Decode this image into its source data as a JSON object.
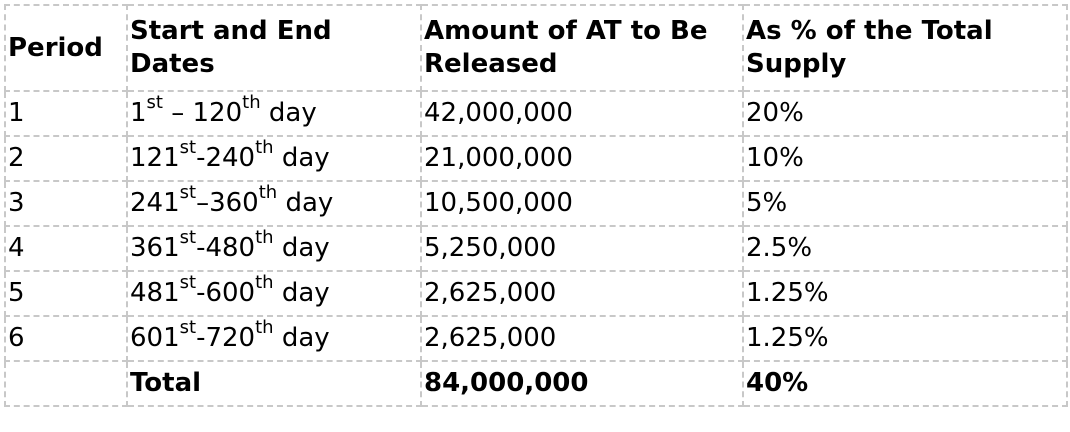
{
  "table": {
    "headers": {
      "period": "Period",
      "dates": "Start and End Dates",
      "amount": "Amount of AT to Be Released",
      "percent": "As % of the Total Supply"
    },
    "rows": [
      {
        "period": "1",
        "start_num": "1",
        "start_suffix": "st",
        "sep": " – ",
        "end_num": "120",
        "end_suffix": "th",
        "unit": " day",
        "amount": "42,000,000",
        "percent": "20%"
      },
      {
        "period": "2",
        "start_num": "121",
        "start_suffix": "st",
        "sep": "-",
        "end_num": "240",
        "end_suffix": "th",
        "unit": " day",
        "amount": "21,000,000",
        "percent": "10%"
      },
      {
        "period": "3",
        "start_num": "241",
        "start_suffix": "st",
        "sep": "–",
        "end_num": "360",
        "end_suffix": "th",
        "unit": " day",
        "amount": "10,500,000",
        "percent": "5%"
      },
      {
        "period": "4",
        "start_num": "361",
        "start_suffix": "st",
        "sep": "-",
        "end_num": "480",
        "end_suffix": "th",
        "unit": " day",
        "amount": "5,250,000",
        "percent": "2.5%"
      },
      {
        "period": "5",
        "start_num": "481",
        "start_suffix": "st",
        "sep": "-",
        "end_num": "600",
        "end_suffix": "th",
        "unit": " day",
        "amount": "2,625,000",
        "percent": "1.25%"
      },
      {
        "period": "6",
        "start_num": "601",
        "start_suffix": "st",
        "sep": "-",
        "end_num": "720",
        "end_suffix": "th",
        "unit": " day",
        "amount": "2,625,000",
        "percent": "1.25%"
      }
    ],
    "total": {
      "label": "Total",
      "amount": "84,000,000",
      "percent": "40%"
    }
  }
}
